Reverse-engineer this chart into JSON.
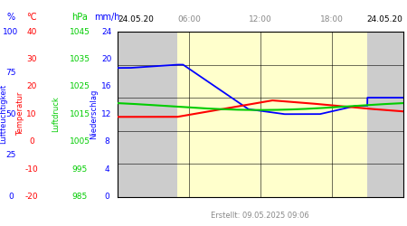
{
  "created_text": "Erstellt: 09.05.2025 09:06",
  "background_day": "#ffffcc",
  "background_night": "#cccccc",
  "day_start": 5.0,
  "day_end": 21.0,
  "hum_min": 0,
  "hum_max": 100,
  "temp_min": -20,
  "temp_max": 40,
  "pres_min": 985,
  "pres_max": 1045,
  "prec_min": 0,
  "prec_max": 24,
  "humidity_color": "#0000ff",
  "temperature_color": "#ff0000",
  "pressure_color": "#00cc00",
  "hum_ticks": [
    0,
    25,
    50,
    75,
    100
  ],
  "temp_ticks": [
    -20,
    -10,
    0,
    10,
    20,
    30,
    40
  ],
  "pres_ticks": [
    985,
    995,
    1005,
    1015,
    1025,
    1035,
    1045
  ],
  "prec_ticks": [
    0,
    4,
    8,
    12,
    16,
    20,
    24
  ],
  "hum_label": "Luftfeuchtigkeit",
  "temp_label": "Temperatur",
  "pres_label": "Luftdruck",
  "prec_label": "Niederschlag",
  "date_label": "24.05.20",
  "time_ticks": [
    6,
    12,
    18
  ],
  "time_labels": [
    "06:00",
    "12:00",
    "18:00"
  ]
}
